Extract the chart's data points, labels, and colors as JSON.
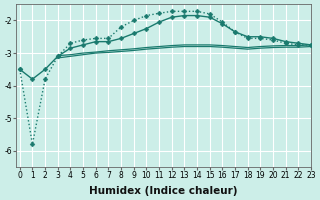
{
  "xlabel": "Humidex (Indice chaleur)",
  "background_color": "#cceee8",
  "grid_color": "#aadddd",
  "line_color": "#1a7a6e",
  "x_values": [
    0,
    1,
    2,
    3,
    4,
    5,
    6,
    7,
    8,
    9,
    10,
    11,
    12,
    13,
    14,
    15,
    16,
    17,
    18,
    19,
    20,
    21,
    22,
    23
  ],
  "series": [
    {
      "y": [
        -3.5,
        -5.8,
        -3.8,
        -3.1,
        -2.7,
        -2.6,
        -2.55,
        -2.55,
        -2.2,
        -2.0,
        -1.85,
        -1.78,
        -1.72,
        -1.72,
        -1.72,
        -1.8,
        -2.05,
        -2.35,
        -2.55,
        -2.55,
        -2.6,
        -2.7,
        -2.75,
        -2.75
      ],
      "style": ":",
      "marker": "D",
      "markersize": 2.5,
      "linewidth": 1.0
    },
    {
      "y": [
        -3.5,
        -3.8,
        -3.5,
        -3.1,
        -2.85,
        -2.75,
        -2.65,
        -2.65,
        -2.55,
        -2.4,
        -2.25,
        -2.05,
        -1.9,
        -1.85,
        -1.85,
        -1.9,
        -2.1,
        -2.35,
        -2.5,
        -2.5,
        -2.55,
        -2.65,
        -2.7,
        -2.75
      ],
      "style": "-",
      "marker": "D",
      "markersize": 2.5,
      "linewidth": 1.0
    },
    {
      "y": [
        -3.2,
        null,
        null,
        -3.15,
        -3.1,
        -3.05,
        -3.0,
        -2.98,
        -2.95,
        -2.92,
        -2.88,
        -2.85,
        -2.82,
        -2.8,
        -2.8,
        -2.8,
        -2.82,
        -2.85,
        -2.88,
        -2.85,
        -2.83,
        -2.82,
        -2.82,
        -2.8
      ],
      "style": "-",
      "marker": null,
      "markersize": 0,
      "linewidth": 0.9
    },
    {
      "y": [
        -3.1,
        null,
        null,
        -3.08,
        -3.05,
        -3.0,
        -2.97,
        -2.93,
        -2.9,
        -2.87,
        -2.83,
        -2.8,
        -2.77,
        -2.75,
        -2.75,
        -2.75,
        -2.77,
        -2.8,
        -2.83,
        -2.8,
        -2.78,
        -2.77,
        -2.77,
        -2.75
      ],
      "style": "-",
      "marker": null,
      "markersize": 0,
      "linewidth": 0.9
    }
  ],
  "ylim": [
    -6.5,
    -1.5
  ],
  "xlim": [
    -0.3,
    23
  ],
  "yticks": [
    -6,
    -5,
    -4,
    -3,
    -2
  ],
  "xticks": [
    0,
    1,
    2,
    3,
    4,
    5,
    6,
    7,
    8,
    9,
    10,
    11,
    12,
    13,
    14,
    15,
    16,
    17,
    18,
    19,
    20,
    21,
    22,
    23
  ],
  "xtick_labels": [
    "0",
    "1",
    "2",
    "3",
    "4",
    "5",
    "6",
    "7",
    "8",
    "9",
    "10",
    "11",
    "12",
    "13",
    "14",
    "15",
    "16",
    "17",
    "18",
    "19",
    "20",
    "21",
    "22",
    "23"
  ],
  "tick_fontsize": 5.5,
  "xlabel_fontsize": 7.5
}
